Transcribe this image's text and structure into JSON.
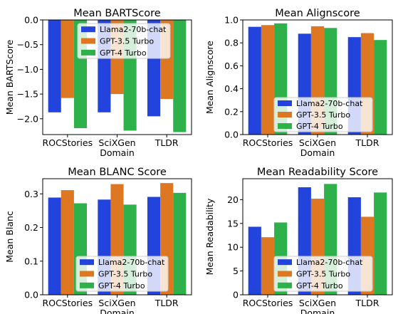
{
  "colors": {
    "Llama2-70b-chat": "#2244dd",
    "GPT-3.5 Turbo": "#dd7722",
    "GPT-4 Turbo": "#2eb14a"
  },
  "chart_data": [
    {
      "type": "bar",
      "title": "Mean BARTScore",
      "ylabel": "Mean BARTScore",
      "xlabel": "Domain",
      "categories": [
        "ROCStories",
        "SciXGen",
        "TLDR"
      ],
      "series": [
        {
          "name": "Llama2-70b-chat",
          "values": [
            -1.87,
            -1.87,
            -1.95
          ]
        },
        {
          "name": "GPT-3.5 Turbo",
          "values": [
            -1.58,
            -1.5,
            -1.6
          ]
        },
        {
          "name": "GPT-4 Turbo",
          "values": [
            -2.19,
            -2.24,
            -2.27
          ]
        }
      ],
      "ylim": [
        -2.32,
        0.0
      ],
      "yticks": [
        0.0,
        -0.5,
        -1.0,
        -1.5,
        -2.0
      ],
      "ytick_labels": [
        "0.0",
        "−0.5",
        "−1.0",
        "−1.5",
        "−2.0"
      ],
      "legend": "top-center",
      "grid": false
    },
    {
      "type": "bar",
      "title": "Mean Alignscore",
      "ylabel": "Mean Alignscore",
      "xlabel": "Domain",
      "categories": [
        "ROCStories",
        "SciXGen",
        "TLDR"
      ],
      "series": [
        {
          "name": "Llama2-70b-chat",
          "values": [
            0.94,
            0.88,
            0.85
          ]
        },
        {
          "name": "GPT-3.5 Turbo",
          "values": [
            0.955,
            0.945,
            0.885
          ]
        },
        {
          "name": "GPT-4 Turbo",
          "values": [
            0.97,
            0.93,
            0.825
          ]
        }
      ],
      "ylim": [
        0.0,
        1.0
      ],
      "yticks": [
        0.0,
        0.2,
        0.4,
        0.6,
        0.8,
        1.0
      ],
      "ytick_labels": [
        "0.0",
        "0.2",
        "0.4",
        "0.6",
        "0.8",
        "1.0"
      ],
      "legend": "lower-right",
      "grid": false
    },
    {
      "type": "bar",
      "title": "Mean BLANC Score",
      "ylabel": "Mean Blanc",
      "xlabel": "Domain",
      "categories": [
        "ROCStories",
        "SciXGen",
        "TLDR"
      ],
      "series": [
        {
          "name": "Llama2-70b-chat",
          "values": [
            0.289,
            0.283,
            0.291
          ]
        },
        {
          "name": "GPT-3.5 Turbo",
          "values": [
            0.311,
            0.329,
            0.332
          ]
        },
        {
          "name": "GPT-4 Turbo",
          "values": [
            0.272,
            0.268,
            0.303
          ]
        }
      ],
      "ylim": [
        0.0,
        0.345
      ],
      "yticks": [
        0.0,
        0.1,
        0.2,
        0.3
      ],
      "ytick_labels": [
        "0.0",
        "0.1",
        "0.2",
        "0.3"
      ],
      "legend": "lower-right",
      "grid": false
    },
    {
      "type": "bar",
      "title": "Mean Readability Score",
      "ylabel": "Mean Readability",
      "xlabel": "Domain",
      "categories": [
        "ROCStories",
        "SciXGen",
        "TLDR"
      ],
      "series": [
        {
          "name": "Llama2-70b-chat",
          "values": [
            14.3,
            22.6,
            20.5
          ]
        },
        {
          "name": "GPT-3.5 Turbo",
          "values": [
            12.1,
            20.2,
            16.4
          ]
        },
        {
          "name": "GPT-4 Turbo",
          "values": [
            15.2,
            23.3,
            21.5
          ]
        }
      ],
      "ylim": [
        0,
        24.4
      ],
      "yticks": [
        0,
        5,
        10,
        15,
        20
      ],
      "ytick_labels": [
        "0",
        "5",
        "10",
        "15",
        "20"
      ],
      "legend": "lower-right",
      "grid": false
    }
  ]
}
